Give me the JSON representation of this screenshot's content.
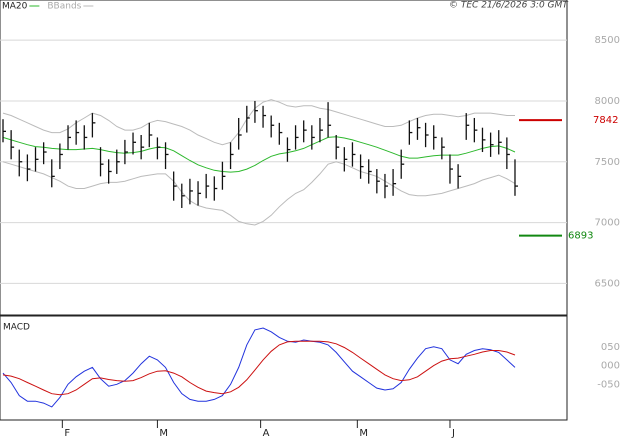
{
  "chart_data": [
    {
      "type": "ohlc",
      "high": [
        7850,
        7760,
        7600,
        7560,
        7620,
        7660,
        7520,
        7650,
        7800,
        7840,
        7800,
        7900,
        7620,
        7520,
        7600,
        7680,
        7740,
        7720,
        7820,
        7700,
        7660,
        7420,
        7320,
        7360,
        7340,
        7400,
        7380,
        7500,
        7660,
        7860,
        7960,
        8000,
        7960,
        7880,
        7820,
        7700,
        7800,
        7840,
        7800,
        7860,
        7990,
        7720,
        7620,
        7660,
        7560,
        7520,
        7440,
        7400,
        7440,
        7600,
        7840,
        7860,
        7820,
        7800,
        7700,
        7560,
        7480,
        7900,
        7860,
        7780,
        7740,
        7760,
        7700,
        7520
      ],
      "low": [
        7660,
        7520,
        7380,
        7340,
        7420,
        7480,
        7290,
        7440,
        7600,
        7640,
        7600,
        7700,
        7380,
        7320,
        7400,
        7480,
        7560,
        7520,
        7620,
        7520,
        7440,
        7180,
        7120,
        7150,
        7140,
        7200,
        7180,
        7270,
        7440,
        7600,
        7740,
        7820,
        7780,
        7700,
        7640,
        7500,
        7600,
        7660,
        7600,
        7660,
        7700,
        7520,
        7420,
        7460,
        7360,
        7320,
        7240,
        7200,
        7220,
        7360,
        7640,
        7680,
        7620,
        7600,
        7520,
        7320,
        7280,
        7680,
        7660,
        7580,
        7540,
        7560,
        7440,
        7220
      ],
      "close": [
        7750,
        7620,
        7500,
        7440,
        7520,
        7580,
        7380,
        7560,
        7700,
        7740,
        7700,
        7820,
        7480,
        7420,
        7500,
        7580,
        7660,
        7620,
        7720,
        7620,
        7560,
        7300,
        7220,
        7260,
        7240,
        7300,
        7280,
        7380,
        7560,
        7720,
        7860,
        7920,
        7880,
        7800,
        7740,
        7600,
        7700,
        7760,
        7700,
        7760,
        7800,
        7620,
        7520,
        7560,
        7460,
        7420,
        7340,
        7300,
        7320,
        7480,
        7740,
        7780,
        7720,
        7700,
        7620,
        7440,
        7380,
        7800,
        7760,
        7680,
        7640,
        7660,
        7560,
        7300
      ],
      "series": [
        {
          "name": "MA20",
          "color": "#2db82d",
          "values": [
            7700,
            7680,
            7660,
            7640,
            7625,
            7620,
            7610,
            7605,
            7600,
            7600,
            7605,
            7610,
            7600,
            7585,
            7575,
            7570,
            7575,
            7585,
            7605,
            7620,
            7615,
            7590,
            7550,
            7510,
            7475,
            7450,
            7430,
            7420,
            7415,
            7420,
            7440,
            7470,
            7510,
            7545,
            7565,
            7575,
            7590,
            7610,
            7640,
            7670,
            7700,
            7705,
            7695,
            7680,
            7660,
            7640,
            7620,
            7595,
            7570,
            7545,
            7530,
            7530,
            7540,
            7550,
            7555,
            7555,
            7555,
            7570,
            7590,
            7610,
            7625,
            7630,
            7610,
            7580
          ]
        },
        {
          "name": "BBands",
          "color": "#bbbbbb",
          "upper": [
            7900,
            7880,
            7850,
            7820,
            7790,
            7760,
            7740,
            7740,
            7770,
            7820,
            7860,
            7900,
            7880,
            7840,
            7790,
            7760,
            7760,
            7780,
            7820,
            7840,
            7830,
            7810,
            7790,
            7760,
            7720,
            7690,
            7660,
            7640,
            7660,
            7740,
            7850,
            7940,
            7990,
            8010,
            7990,
            7960,
            7950,
            7960,
            7960,
            7940,
            7930,
            7910,
            7890,
            7870,
            7850,
            7830,
            7810,
            7790,
            7790,
            7800,
            7830,
            7860,
            7880,
            7890,
            7890,
            7880,
            7870,
            7880,
            7900,
            7900,
            7900,
            7890,
            7880,
            7880
          ],
          "lower": [
            7500,
            7480,
            7460,
            7440,
            7420,
            7400,
            7370,
            7340,
            7300,
            7280,
            7280,
            7300,
            7320,
            7330,
            7330,
            7340,
            7360,
            7380,
            7390,
            7400,
            7400,
            7340,
            7250,
            7180,
            7140,
            7120,
            7110,
            7100,
            7060,
            7010,
            6990,
            6980,
            7010,
            7060,
            7130,
            7190,
            7240,
            7270,
            7330,
            7400,
            7480,
            7500,
            7480,
            7450,
            7420,
            7400,
            7380,
            7340,
            7300,
            7260,
            7230,
            7220,
            7220,
            7230,
            7240,
            7260,
            7280,
            7300,
            7320,
            7350,
            7370,
            7390,
            7360,
            7320
          ]
        }
      ],
      "levels": [
        {
          "value": 7842,
          "color": "#cc0000"
        },
        {
          "value": 6893,
          "color": "#118811"
        }
      ],
      "xlim": [
        -0.37,
        69.4
      ],
      "ylim": [
        6240,
        8830
      ],
      "yticks": [
        8500,
        8000,
        7500,
        7000,
        6500
      ],
      "grid": true,
      "annotation": "© TEC 21/6/2026 3:0 GMT"
    },
    {
      "type": "macd",
      "title": "MACD",
      "series": [
        {
          "color": "#2233dd",
          "values": [
            -20,
            -45,
            -80,
            -95,
            -95,
            -100,
            -110,
            -85,
            -50,
            -30,
            -15,
            -5,
            -35,
            -55,
            -50,
            -40,
            -20,
            5,
            25,
            15,
            -5,
            -45,
            -75,
            -90,
            -95,
            -95,
            -90,
            -80,
            -50,
            -5,
            55,
            95,
            100,
            90,
            75,
            65,
            62,
            68,
            65,
            62,
            55,
            35,
            10,
            -15,
            -30,
            -45,
            -60,
            -65,
            -62,
            -45,
            -10,
            20,
            45,
            50,
            45,
            15,
            5,
            30,
            40,
            45,
            42,
            35,
            15,
            -5
          ]
        },
        {
          "color": "#cc1111",
          "values": [
            -25,
            -28,
            -35,
            -45,
            -55,
            -65,
            -75,
            -78,
            -75,
            -65,
            -50,
            -35,
            -33,
            -37,
            -40,
            -42,
            -40,
            -32,
            -22,
            -15,
            -14,
            -20,
            -30,
            -45,
            -58,
            -68,
            -72,
            -75,
            -70,
            -58,
            -38,
            -12,
            15,
            38,
            55,
            63,
            65,
            65,
            65,
            65,
            63,
            58,
            48,
            35,
            20,
            5,
            -10,
            -25,
            -35,
            -40,
            -38,
            -30,
            -15,
            0,
            12,
            18,
            20,
            25,
            30,
            36,
            40,
            40,
            36,
            28
          ]
        }
      ],
      "xlim": [
        -0.37,
        69.4
      ],
      "ylim": [
        -145,
        132
      ],
      "yticks": [
        {
          "value": 50,
          "label": "050"
        },
        {
          "value": 0,
          "label": "000"
        },
        {
          "value": -50,
          "label": "-050"
        }
      ],
      "xticks": [
        {
          "value": 7.3,
          "label": "F"
        },
        {
          "value": 19,
          "label": "M"
        },
        {
          "value": 31.7,
          "label": "A"
        },
        {
          "value": 43.6,
          "label": "M"
        },
        {
          "value": 55,
          "label": "J"
        }
      ]
    }
  ]
}
